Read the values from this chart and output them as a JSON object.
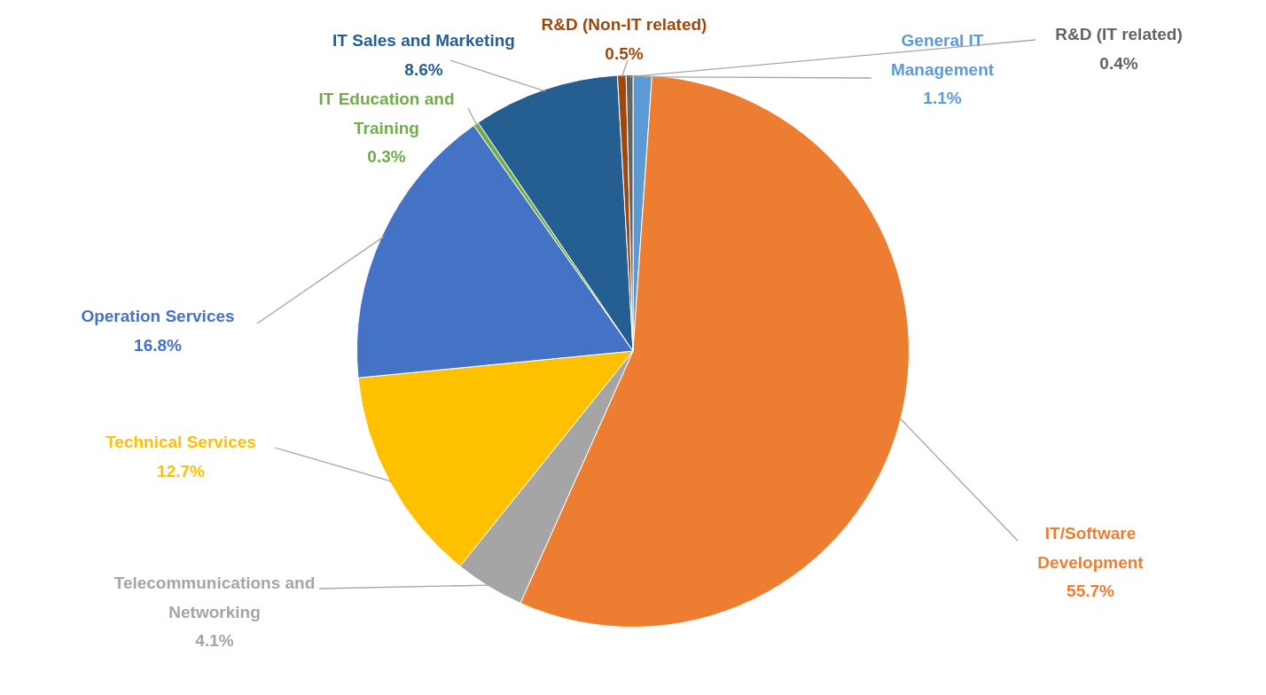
{
  "chart_data": {
    "type": "pie",
    "categories": [
      "General IT Management",
      "IT/Software Development",
      "Telecommunications and Networking",
      "Technical Services",
      "Operation Services",
      "IT Education and Training",
      "IT Sales and Marketing",
      "R&D (Non-IT related)",
      "R&D (IT related)"
    ],
    "values": [
      1.1,
      55.7,
      4.1,
      12.7,
      16.8,
      0.3,
      8.6,
      0.5,
      0.4
    ],
    "value_labels": [
      "1.1%",
      "55.7%",
      "4.1%",
      "12.7%",
      "16.8%",
      "0.3%",
      "8.6%",
      "0.5%",
      "0.4%"
    ],
    "colors": [
      "#5b9bd5",
      "#ed7d31",
      "#a5a5a5",
      "#ffc000",
      "#4472c4",
      "#70ad47",
      "#255e91",
      "#9e480e",
      "#636363"
    ],
    "legend": false
  }
}
